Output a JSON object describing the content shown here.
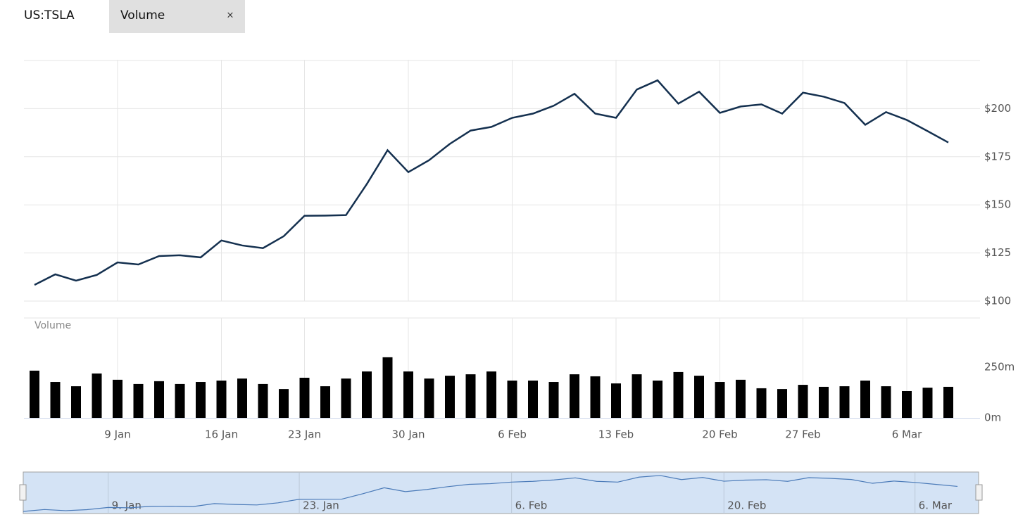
{
  "header": {
    "symbol": "US:TSLA",
    "tab": "Volume",
    "close": "×"
  },
  "chart_data": [
    {
      "type": "line",
      "color": "#14304f",
      "grid": true,
      "categories": [
        null,
        null,
        null,
        null,
        "9 Jan",
        null,
        null,
        null,
        null,
        "16 Jan",
        null,
        null,
        null,
        "23 Jan",
        null,
        null,
        null,
        null,
        "30 Jan",
        null,
        null,
        null,
        null,
        "6 Feb",
        null,
        null,
        null,
        null,
        "13 Feb",
        null,
        null,
        null,
        null,
        "20 Feb",
        null,
        null,
        null,
        "27 Feb",
        null,
        null,
        null,
        null,
        "6 Mar",
        null,
        null
      ],
      "values": [
        108.4,
        113.9,
        110.6,
        113.6,
        120.1,
        119.0,
        123.4,
        123.8,
        122.7,
        131.5,
        128.9,
        127.5,
        133.7,
        144.3,
        144.4,
        144.7,
        160.8,
        178.4,
        167.0,
        173.2,
        181.7,
        188.6,
        190.5,
        195.2,
        197.4,
        201.5,
        207.7,
        197.4,
        195.2,
        209.9,
        214.7,
        202.6,
        208.8,
        197.8,
        201.1,
        202.2,
        197.4,
        208.3,
        206.2,
        202.9,
        191.6,
        198.2,
        194.1,
        188.3,
        182.4
      ],
      "ylim": [
        100,
        225
      ],
      "yticks": [
        {
          "value": 100,
          "label": "$100"
        },
        {
          "value": 125,
          "label": "$125"
        },
        {
          "value": 150,
          "label": "$150"
        },
        {
          "value": 175,
          "label": "$175"
        },
        {
          "value": 200,
          "label": "$200"
        }
      ]
    },
    {
      "type": "bar",
      "title": "Volume",
      "color": "#000000",
      "values": [
        233,
        177,
        156,
        219,
        188,
        167,
        181,
        167,
        177,
        184,
        194,
        167,
        142,
        198,
        156,
        194,
        229,
        299,
        229,
        194,
        208,
        215,
        229,
        184,
        184,
        177,
        215,
        205,
        170,
        215,
        184,
        226,
        208,
        177,
        188,
        146,
        142,
        163,
        153,
        156,
        184,
        156,
        132,
        149,
        153
      ],
      "ylim": [
        0,
        500
      ],
      "yticks": [
        {
          "value": 0,
          "label": "0m"
        },
        {
          "value": 250,
          "label": "250m"
        }
      ]
    }
  ],
  "navigator": {
    "labels": [
      null,
      null,
      null,
      null,
      "9. Jan",
      null,
      null,
      null,
      null,
      null,
      null,
      null,
      null,
      "23. Jan",
      null,
      null,
      null,
      null,
      null,
      null,
      null,
      null,
      null,
      "6. Feb",
      null,
      null,
      null,
      null,
      null,
      null,
      null,
      null,
      null,
      "20. Feb",
      null,
      null,
      null,
      null,
      null,
      null,
      null,
      null,
      "6. Mar",
      null,
      null
    ]
  }
}
